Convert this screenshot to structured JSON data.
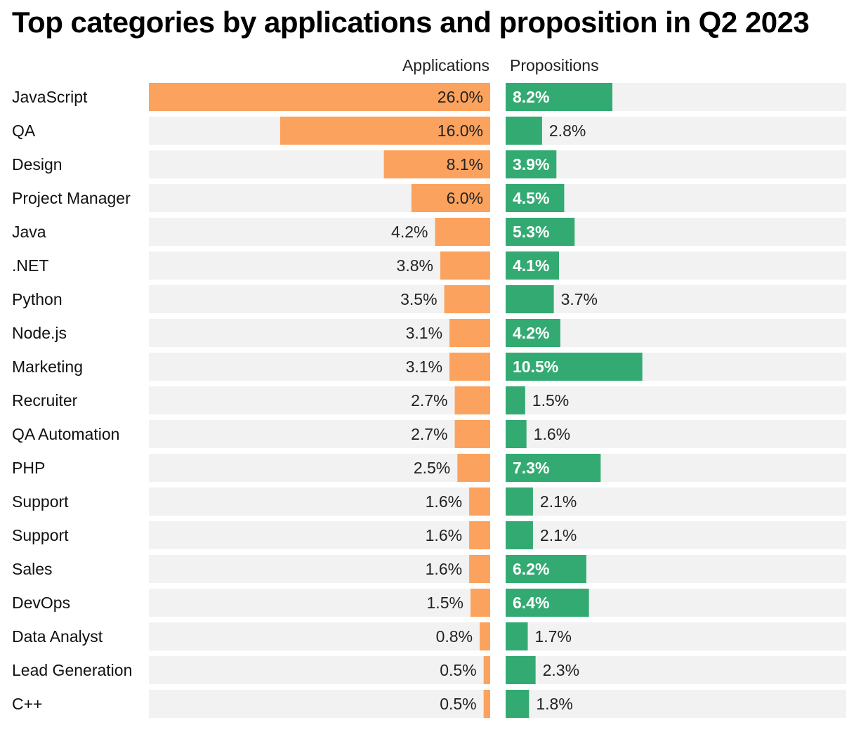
{
  "chart_data": {
    "type": "bar",
    "title": "Top categories by applications and proposition in Q2 2023",
    "value_format": "percent_1dp",
    "categories": [
      "JavaScript",
      "QA",
      "Design",
      "Project Manager",
      "Java",
      ".NET",
      "Python",
      "Node.js",
      "Marketing",
      "Recruiter",
      "QA Automation",
      "PHP",
      "Support",
      "Support",
      "Sales",
      "DevOps",
      "Data Analyst",
      "Lead Generation",
      "C++"
    ],
    "series": [
      {
        "name": "Applications",
        "direction": "left",
        "color": "#fba35e",
        "values": [
          26.0,
          16.0,
          8.1,
          6.0,
          4.2,
          3.8,
          3.5,
          3.1,
          3.1,
          2.7,
          2.7,
          2.5,
          1.6,
          1.6,
          1.6,
          1.5,
          0.8,
          0.5,
          0.5
        ]
      },
      {
        "name": "Propositions",
        "direction": "right",
        "color": "#33aa72",
        "values": [
          8.2,
          2.8,
          3.9,
          4.5,
          5.3,
          4.1,
          3.7,
          4.2,
          10.5,
          1.5,
          1.6,
          7.3,
          2.1,
          2.1,
          6.2,
          6.4,
          1.7,
          2.3,
          1.8
        ]
      }
    ],
    "xlim": [
      0,
      26.0
    ],
    "track_color": "#f2f2f2",
    "label_inside_color": "#222222",
    "label_outside_color": "#222222",
    "label_inside_color_props": "#ffffff",
    "grid": false,
    "legend": "column headers above bars"
  }
}
